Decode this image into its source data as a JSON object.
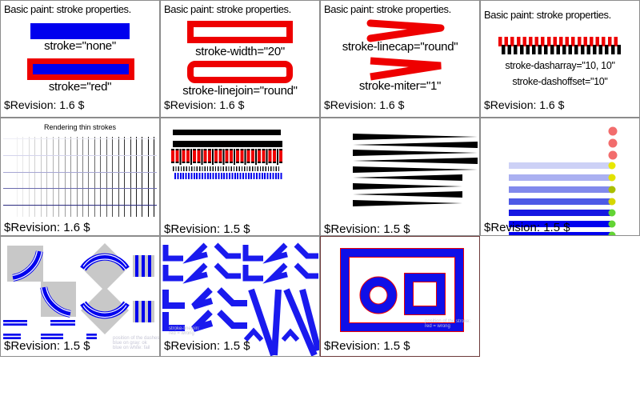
{
  "colors": {
    "blue": "#0000ee",
    "red": "#ee0000",
    "black": "#000000",
    "gray_fill": "#c8c8c8",
    "cell_border": "#8c8c8c",
    "cell11_border": "#6d3a3a",
    "caption_gray": "#c6c6d6",
    "pink_dot": "#f26d6d",
    "yellow_dot": "#e8e800",
    "green_dot": "#63d435"
  },
  "cells": {
    "c1": {
      "title": "Basic paint: stroke properties.",
      "labels": [
        "stroke=\"none\"",
        "stroke=\"red\""
      ],
      "revision": "$Revision: 1.6 $"
    },
    "c2": {
      "title": "Basic paint: stroke properties.",
      "labels": [
        "stroke-width=\"20\"",
        "stroke-linejoin=\"round\""
      ],
      "revision": "$Revision: 1.6 $"
    },
    "c3": {
      "title": "Basic paint: stroke properties.",
      "labels": [
        "stroke-linecap=\"round\"",
        "stroke-miter=\"1\""
      ],
      "revision": "$Revision: 1.6 $"
    },
    "c4": {
      "title": "Basic paint: stroke properties.",
      "labels": [
        "stroke-dasharray=\"10, 10\"",
        "stroke-dashoffset=\"10\""
      ],
      "revision": "$Revision: 1.6 $"
    },
    "c5": {
      "title": "Rendering thin strokes",
      "revision": "$Revision: 1.6 $",
      "vertical_line_count": 24,
      "horizontal_line_colors": [
        "#ececf6",
        "#d4d4ec",
        "#a6a6d2",
        "#6a6aae",
        "#2c2c80"
      ]
    },
    "c6": {
      "revision": "$Revision: 1.5 $"
    },
    "c7": {
      "revision": "$Revision: 1.5 $"
    },
    "c8": {
      "revision": "$Revision: 1.5 $",
      "top_dot_color": "#f26d6d",
      "bars": [
        {
          "color": "#cdd1f6",
          "dot": "#e8e800"
        },
        {
          "color": "#aab0f1",
          "dot": "#e2e200"
        },
        {
          "color": "#8189ec",
          "dot": "#aabf00"
        },
        {
          "color": "#4d59e6",
          "dot": "#d6d600"
        },
        {
          "color": "#1618e2",
          "dot": "#63d435"
        },
        {
          "color": "#0000ee",
          "dot": "#63d435"
        },
        {
          "color": "#0000ee",
          "dot": "#63d435"
        }
      ]
    },
    "c9": {
      "revision": "$Revision: 1.5 $",
      "caption": [
        "position of the dashes:",
        "blue on gray: ok",
        "blue on white: fail"
      ]
    },
    "c10": {
      "revision": "$Revision: 1.5 $",
      "caption": [
        "stroke-linejoin:",
        "red = wrong"
      ]
    },
    "c11": {
      "revision": "$Revision: 1.5 $",
      "caption": [
        "position of the stroke:",
        "red = wrong"
      ]
    }
  }
}
